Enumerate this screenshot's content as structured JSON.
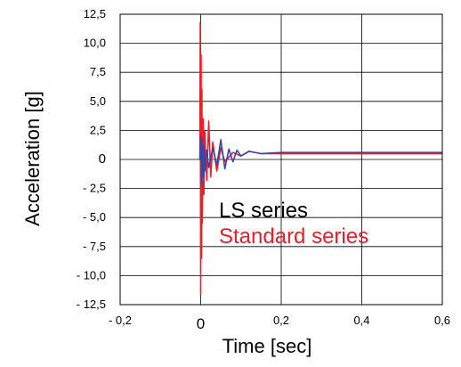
{
  "chart_data": {
    "type": "line",
    "xlabel": "Time [sec]",
    "ylabel": "Acceleration [g]",
    "xlim": [
      -0.2,
      0.6
    ],
    "ylim": [
      -12.5,
      12.5
    ],
    "x_ticks": [
      -0.2,
      0,
      0.2,
      0.4,
      0.6
    ],
    "x_tick_labels": [
      "- 0,2",
      "0",
      "0,2",
      "0,4",
      "0,6"
    ],
    "y_ticks": [
      12.5,
      10,
      7.5,
      5,
      2.5,
      0,
      -2.5,
      -5,
      -7.5,
      -10,
      -12.5
    ],
    "y_tick_labels": [
      "12,5",
      "10,0",
      "7,5",
      "5,0",
      "2,5",
      "0",
      "- 2,5",
      "- 5,0",
      "- 7,5",
      "- 10,0",
      "- 12,5"
    ],
    "grid": true,
    "legend_position": "center-right",
    "series": [
      {
        "name": "LS series",
        "color": "#3548a8",
        "legend_color": "#000000",
        "x": [
          -0.002,
          0.0,
          0.002,
          0.004,
          0.006,
          0.008,
          0.01,
          0.015,
          0.02,
          0.03,
          0.04,
          0.05,
          0.06,
          0.07,
          0.08,
          0.09,
          0.1,
          0.12,
          0.15,
          0.2,
          0.3,
          0.4,
          0.5,
          0.6
        ],
        "values": [
          0,
          2.0,
          -2.2,
          1.8,
          -1.5,
          1.2,
          -1.0,
          0.8,
          -0.7,
          1.0,
          -0.5,
          1.7,
          -0.8,
          0.9,
          -0.2,
          0.8,
          0.3,
          0.7,
          0.5,
          0.6,
          0.6,
          0.6,
          0.6,
          0.6
        ]
      },
      {
        "name": "Standard series",
        "color": "#e8202a",
        "legend_color": "#e8202a",
        "x": [
          -0.002,
          -0.001,
          0.0,
          0.001,
          0.002,
          0.003,
          0.004,
          0.006,
          0.008,
          0.01,
          0.015,
          0.02,
          0.025,
          0.03,
          0.04,
          0.05,
          0.06,
          0.08,
          0.1,
          0.12,
          0.15,
          0.2,
          0.3,
          0.4,
          0.5,
          0.6
        ],
        "values": [
          0,
          11.8,
          -11.6,
          9.0,
          -8.5,
          6.0,
          -5.5,
          3.5,
          -3.0,
          2.5,
          -1.8,
          3.3,
          -1.5,
          1.5,
          -1.0,
          1.0,
          -0.2,
          0.6,
          0.3,
          0.7,
          0.5,
          0.5,
          0.5,
          0.5,
          0.5,
          0.5
        ]
      }
    ]
  }
}
